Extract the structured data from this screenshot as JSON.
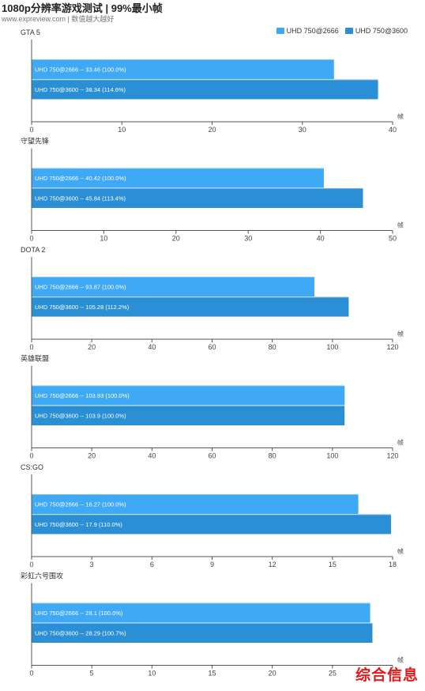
{
  "header": {
    "title": "1080p分辨率游戏测试 | 99%最小帧",
    "subtitle": "www.expreview.com | 数值越大越好"
  },
  "legend": [
    {
      "label": "UHD 750@2666",
      "color": "#3fa9f5"
    },
    {
      "label": "UHD 750@3600",
      "color": "#2b8fd6"
    }
  ],
  "watermark": "综合信息",
  "chart_data": [
    {
      "type": "bar",
      "title": "GTA 5",
      "unit": "帧",
      "xticks": [
        0,
        10,
        20,
        30,
        40
      ],
      "xlim": [
        0,
        40
      ],
      "bars": [
        {
          "series": "UHD 750@2666",
          "value": 33.46,
          "label": "UHD 750@2666  --  33.46 (100.0%)"
        },
        {
          "series": "UHD 750@3600",
          "value": 38.34,
          "label": "UHD 750@3600  --  38.34 (114.6%)"
        }
      ]
    },
    {
      "type": "bar",
      "title": "守望先锋",
      "unit": "帧",
      "xticks": [
        0,
        10,
        20,
        30,
        40,
        50
      ],
      "xlim": [
        0,
        50
      ],
      "bars": [
        {
          "series": "UHD 750@2666",
          "value": 40.42,
          "label": "UHD 750@2666  --  40.42 (100.0%)"
        },
        {
          "series": "UHD 750@3600",
          "value": 45.84,
          "label": "UHD 750@3600  --  45.84 (113.4%)"
        }
      ]
    },
    {
      "type": "bar",
      "title": "DOTA 2",
      "unit": "帧",
      "xticks": [
        0,
        20,
        40,
        60,
        80,
        100,
        120
      ],
      "xlim": [
        0,
        120
      ],
      "bars": [
        {
          "series": "UHD 750@2666",
          "value": 93.87,
          "label": "UHD 750@2666  --  93.87 (100.0%)"
        },
        {
          "series": "UHD 750@3600",
          "value": 105.28,
          "label": "UHD 750@3600  --  105.28 (112.2%)"
        }
      ]
    },
    {
      "type": "bar",
      "title": "英雄联盟",
      "unit": "帧",
      "xticks": [
        0,
        20,
        40,
        60,
        80,
        100,
        120
      ],
      "xlim": [
        0,
        120
      ],
      "bars": [
        {
          "series": "UHD 750@2666",
          "value": 103.93,
          "label": "UHD 750@2666  --  103.93 (100.0%)"
        },
        {
          "series": "UHD 750@3600",
          "value": 103.9,
          "label": "UHD 750@3600  --  103.9 (100.0%)"
        }
      ]
    },
    {
      "type": "bar",
      "title": "CS:GO",
      "unit": "帧",
      "xticks": [
        0,
        3,
        6,
        9,
        12,
        15,
        18
      ],
      "xlim": [
        0,
        18
      ],
      "bars": [
        {
          "series": "UHD 750@2666",
          "value": 16.27,
          "label": "UHD 750@2666  --  16.27 (100.0%)"
        },
        {
          "series": "UHD 750@3600",
          "value": 17.9,
          "label": "UHD 750@3600  --  17.9 (110.0%)"
        }
      ]
    },
    {
      "type": "bar",
      "title": "彩虹六号围攻",
      "unit": "帧",
      "xticks": [
        0,
        5,
        10,
        15,
        20,
        25,
        30
      ],
      "xlim": [
        0,
        30
      ],
      "bars": [
        {
          "series": "UHD 750@2666",
          "value": 28.1,
          "label": "UHD 750@2666  --  28.1 (100.0%)"
        },
        {
          "series": "UHD 750@3600",
          "value": 28.29,
          "label": "UHD 750@3600  --  28.29 (100.7%)"
        }
      ]
    }
  ]
}
